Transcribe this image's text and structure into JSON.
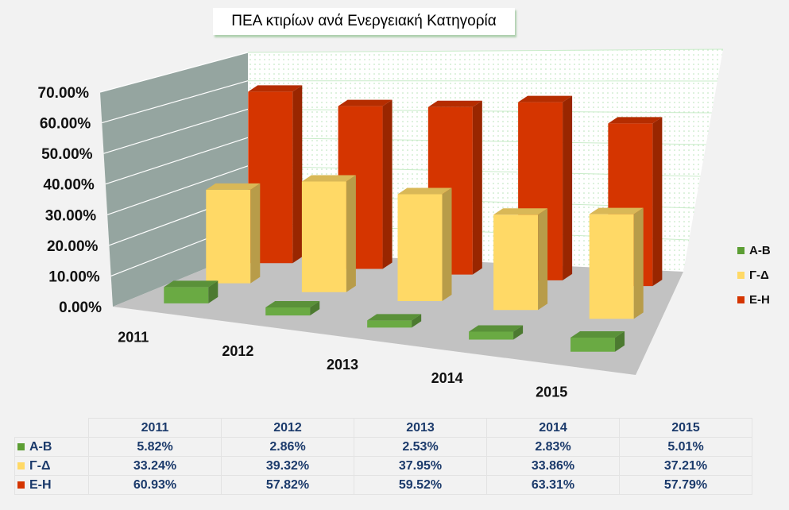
{
  "chart_data": {
    "type": "bar",
    "title": "ΠΕΑ κτιρίων ανά Ενεργειακή  Κατηγορία",
    "categories": [
      "2011",
      "2012",
      "2013",
      "2014",
      "2015"
    ],
    "series": [
      {
        "name": "Α-Β",
        "values": [
          5.82,
          2.86,
          2.53,
          2.83,
          5.01
        ],
        "color": "#6aaa43"
      },
      {
        "name": "Γ-Δ",
        "values": [
          33.24,
          39.32,
          37.95,
          33.86,
          37.21
        ],
        "color": "#ffd966"
      },
      {
        "name": "Ε-Η",
        "values": [
          60.93,
          57.82,
          59.52,
          63.31,
          57.79
        ],
        "color": "#d53500"
      }
    ],
    "series_labels": [
      "Α-Β",
      "Γ-Δ",
      "Ε-Η"
    ],
    "y_ticks": [
      "0.00%",
      "10.00%",
      "20.00%",
      "30.00%",
      "40.00%",
      "50.00%",
      "60.00%",
      "70.00%"
    ],
    "ylim": [
      0,
      70
    ],
    "table": {
      "headers": [
        "2011",
        "2012",
        "2013",
        "2014",
        "2015"
      ],
      "rows": [
        {
          "label": "Α-Β",
          "values": [
            "5.82%",
            "2.86%",
            "2.53%",
            "2.83%",
            "5.01%"
          ]
        },
        {
          "label": "Γ-Δ",
          "values": [
            "33.24%",
            "39.32%",
            "37.95%",
            "33.86%",
            "37.21%"
          ]
        },
        {
          "label": "Ε-Η",
          "values": [
            "60.93%",
            "57.82%",
            "59.52%",
            "63.31%",
            "57.79%"
          ]
        }
      ]
    },
    "legend_position": "right",
    "grid": true
  }
}
